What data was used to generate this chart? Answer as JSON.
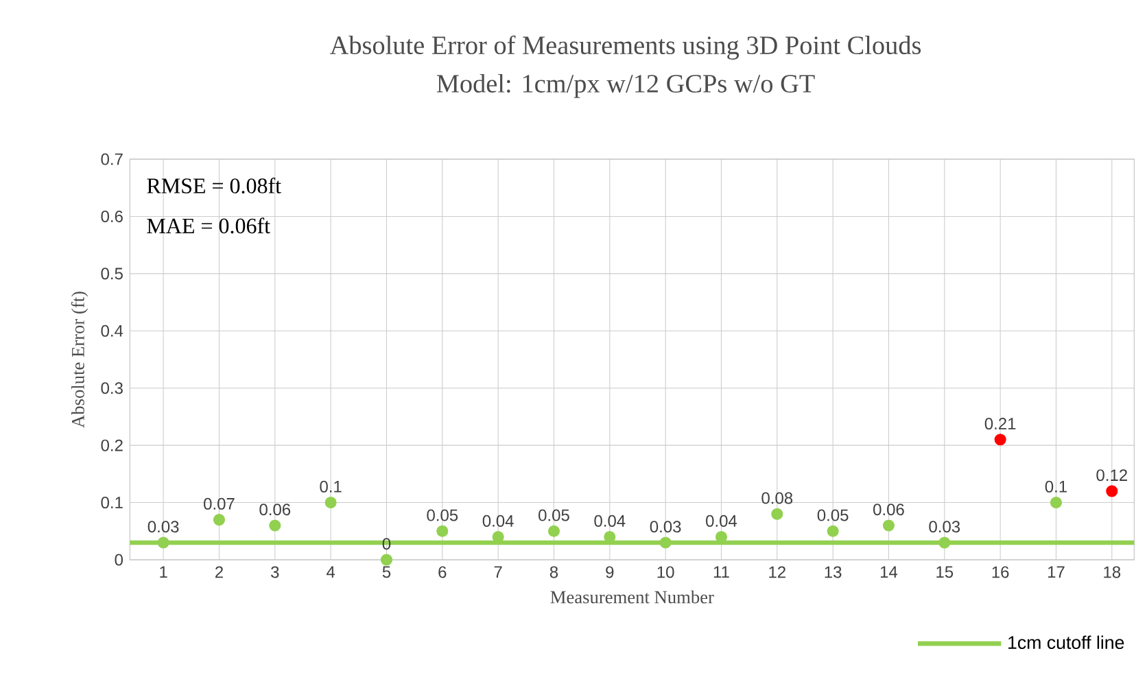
{
  "chart_data": {
    "type": "scatter",
    "title": "Absolute Error of Measurements using 3D Point Clouds",
    "subtitle": "Model: 1cm/px w/12 GCPs w/o GT",
    "xlabel": "Measurement Number",
    "ylabel": "Absolute Error (ft)",
    "categories": [
      "1",
      "2",
      "3",
      "4",
      "5",
      "6",
      "7",
      "8",
      "9",
      "10",
      "11",
      "12",
      "13",
      "14",
      "15",
      "16",
      "17",
      "18"
    ],
    "values": [
      0.03,
      0.07,
      0.06,
      0.1,
      0,
      0.05,
      0.04,
      0.05,
      0.04,
      0.03,
      0.04,
      0.08,
      0.05,
      0.06,
      0.03,
      0.21,
      0.1,
      0.12
    ],
    "colors": [
      "#92d050",
      "#92d050",
      "#92d050",
      "#92d050",
      "#92d050",
      "#92d050",
      "#92d050",
      "#92d050",
      "#92d050",
      "#92d050",
      "#92d050",
      "#92d050",
      "#92d050",
      "#92d050",
      "#92d050",
      "#ff0000",
      "#92d050",
      "#ff0000"
    ],
    "data_labels": true,
    "marker": "circle",
    "ylim": [
      0,
      0.7
    ],
    "yticks": [
      0,
      0.1,
      0.2,
      0.3,
      0.4,
      0.5,
      0.6,
      0.7
    ],
    "grid": true,
    "ref_lines": [
      {
        "axis": "y",
        "value": 0.03,
        "label": "1cm cutoff line",
        "color": "#92d050"
      }
    ],
    "legend": "bottom right",
    "annotations": [
      "RMSE =  0.08ft",
      "MAE = 0.06ft"
    ]
  }
}
